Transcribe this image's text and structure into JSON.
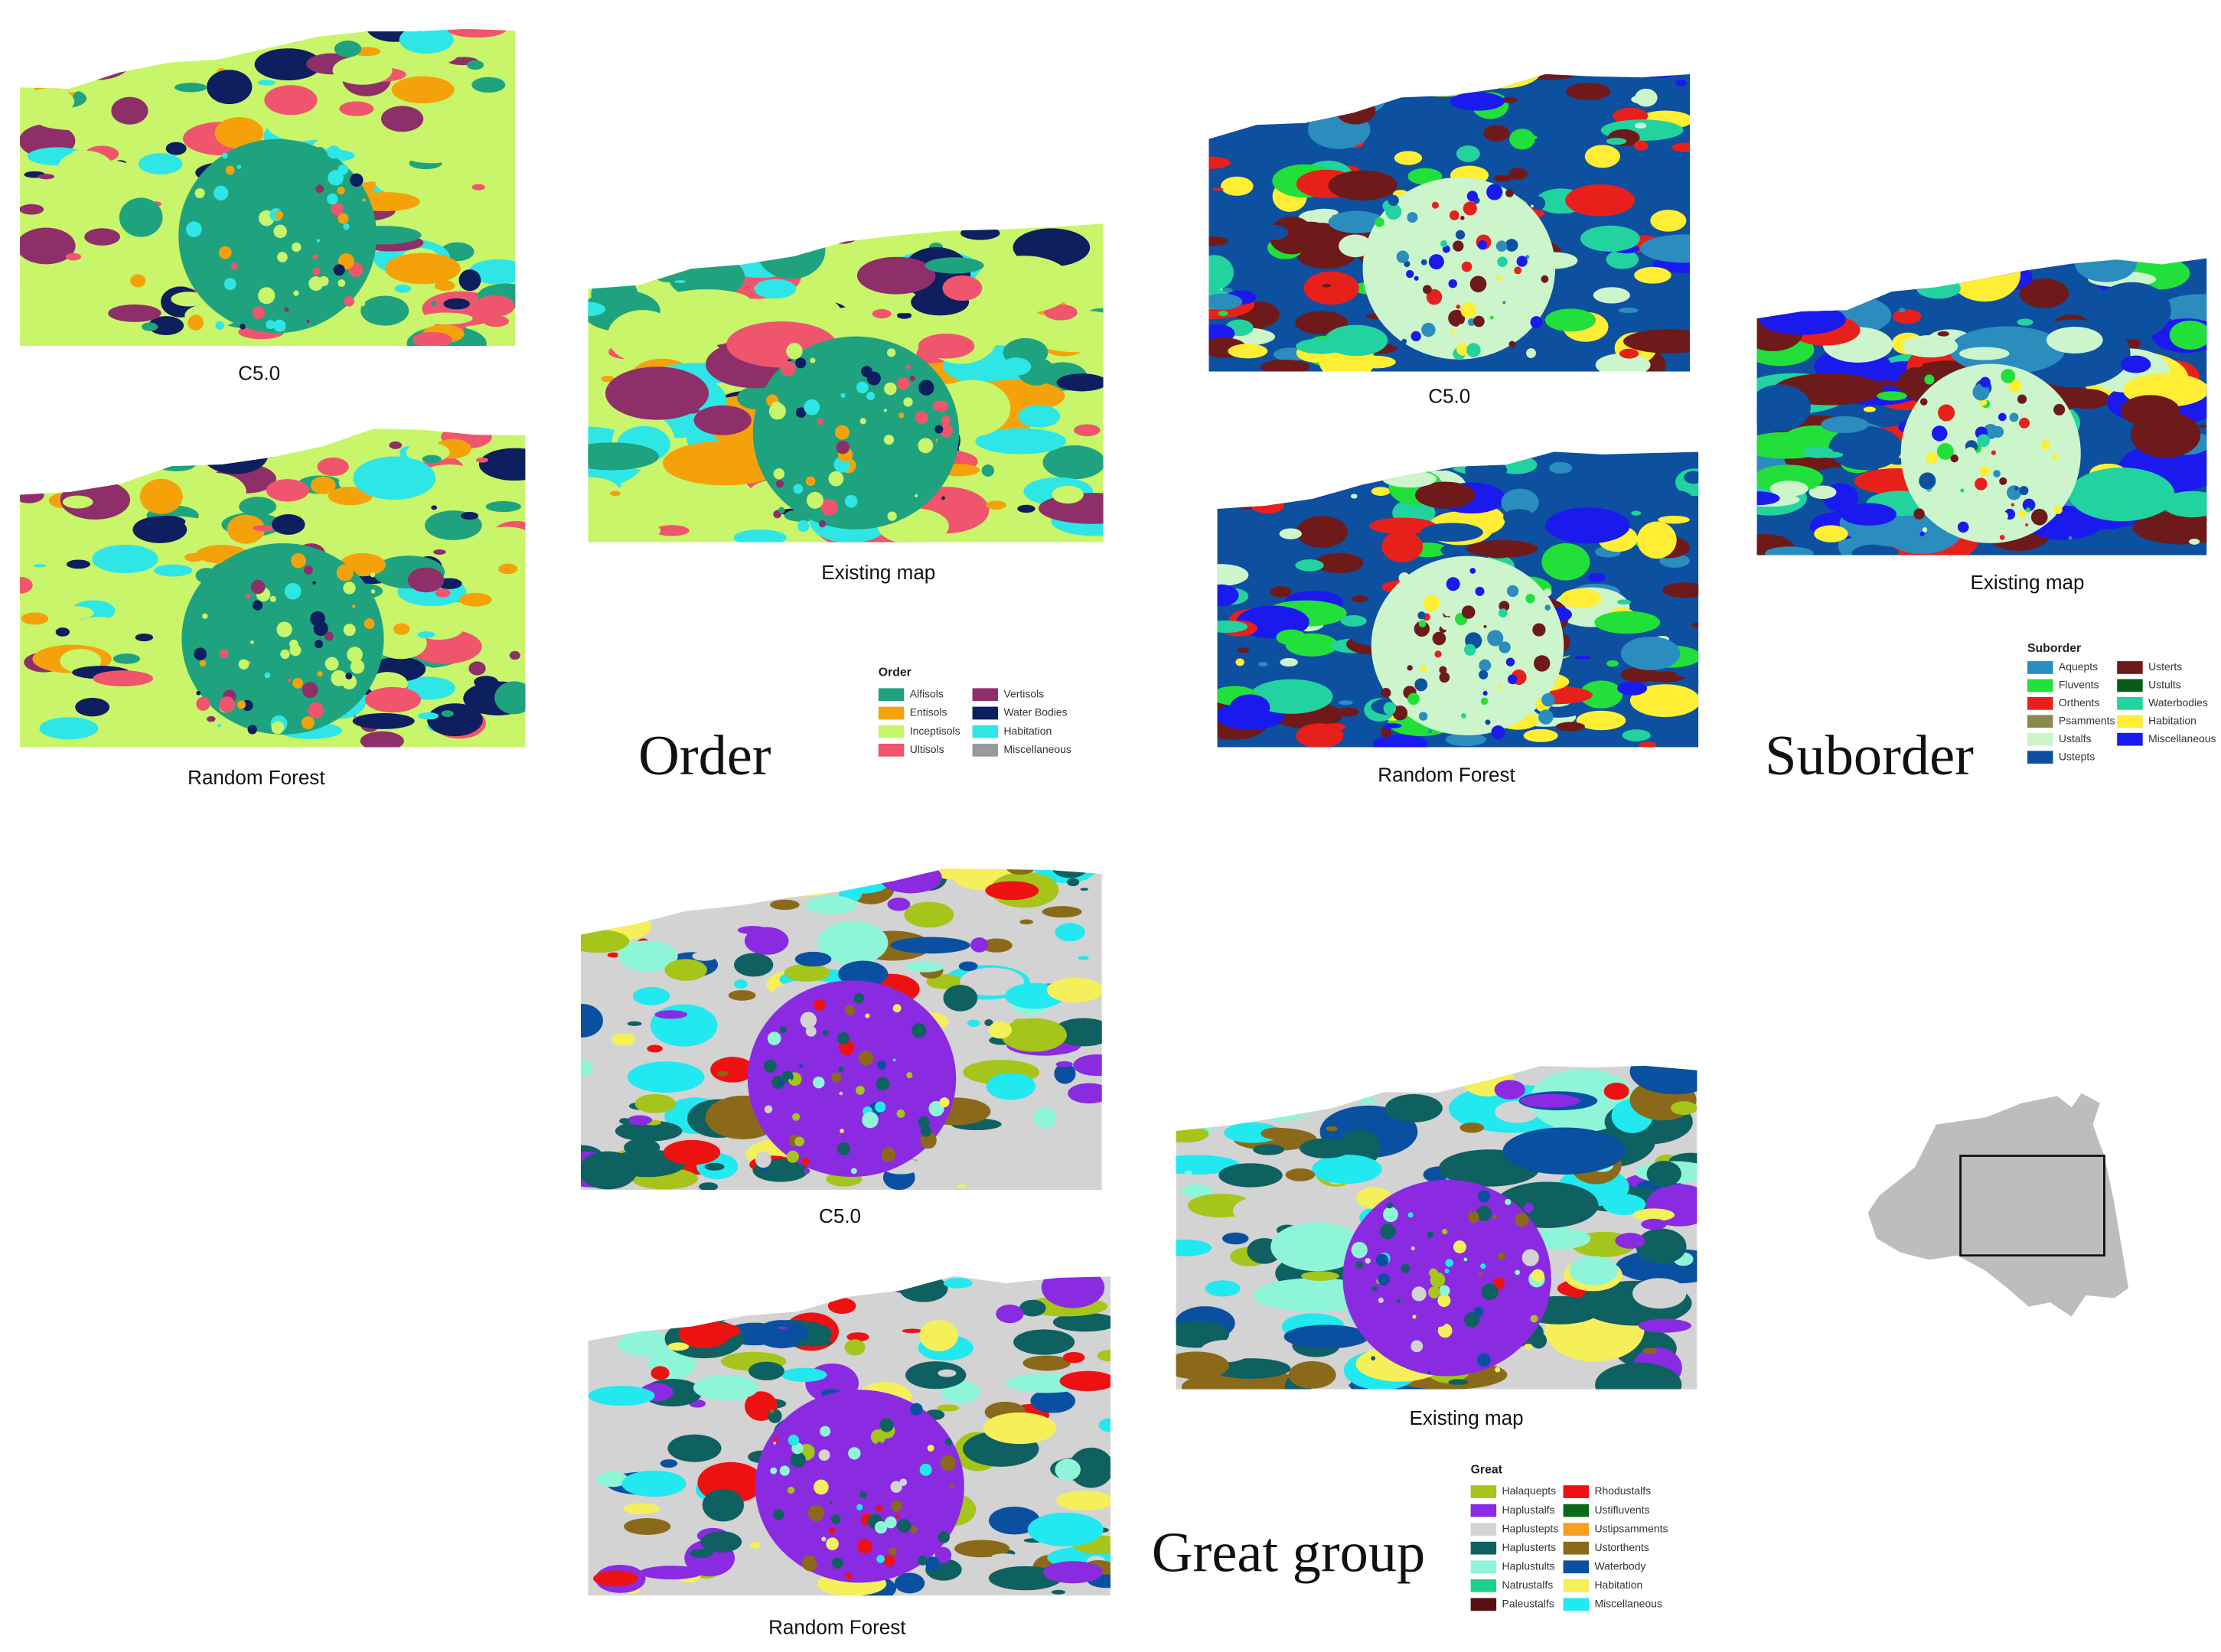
{
  "panels": [
    {
      "title": "Order",
      "maps": [
        {
          "caption": "C5.0"
        },
        {
          "caption": "Random Forest"
        },
        {
          "caption": "Existing map"
        }
      ],
      "legend": {
        "title": "Order",
        "entries": [
          {
            "label": "Alfisols",
            "color": "#1fa37f"
          },
          {
            "label": "Entisols",
            "color": "#f5a20a"
          },
          {
            "label": "Inceptisols",
            "color": "#c8f56a"
          },
          {
            "label": "Ultisols",
            "color": "#f0556e"
          },
          {
            "label": "Vertisols",
            "color": "#8e2f6a"
          },
          {
            "label": "Water Bodies",
            "color": "#0d1f5e"
          },
          {
            "label": "Habitation",
            "color": "#2ee6e6"
          },
          {
            "label": "Miscellaneous",
            "color": "#999999"
          }
        ]
      }
    },
    {
      "title": "Suborder",
      "maps": [
        {
          "caption": "C5.0"
        },
        {
          "caption": "Random Forest"
        },
        {
          "caption": "Existing map"
        }
      ],
      "legend": {
        "title": "Suborder",
        "entries": [
          {
            "label": "Aquepts",
            "color": "#2b8cbe"
          },
          {
            "label": "Fluvents",
            "color": "#22e03a"
          },
          {
            "label": "Orthents",
            "color": "#e8201c"
          },
          {
            "label": "Psamments",
            "color": "#8a8a4a"
          },
          {
            "label": "Ustalfs",
            "color": "#ccf5cc"
          },
          {
            "label": "Ustepts",
            "color": "#0d50a0"
          },
          {
            "label": "Usterts",
            "color": "#6e1a1a"
          },
          {
            "label": "Ustults",
            "color": "#0a5a1a"
          },
          {
            "label": "Waterbodies",
            "color": "#22d3a0"
          },
          {
            "label": "Habitation",
            "color": "#ffee33"
          },
          {
            "label": "Miscellaneous",
            "color": "#1a1aee"
          }
        ]
      }
    },
    {
      "title": "Great group",
      "maps": [
        {
          "caption": "C5.0"
        },
        {
          "caption": "Random Forest"
        },
        {
          "caption": "Existing map"
        }
      ],
      "legend": {
        "title": "Great",
        "entries": [
          {
            "label": "Halaquepts",
            "color": "#a5c51a"
          },
          {
            "label": "Haplustalfs",
            "color": "#8a2be2"
          },
          {
            "label": "Haplustepts",
            "color": "#d3d3d3"
          },
          {
            "label": "Haplusterts",
            "color": "#0f6060"
          },
          {
            "label": "Haplustults",
            "color": "#8ff5d8"
          },
          {
            "label": "Natrustalfs",
            "color": "#1ad38a"
          },
          {
            "label": "Paleustalfs",
            "color": "#5a1010"
          },
          {
            "label": "Rhodustalfs",
            "color": "#ee1111"
          },
          {
            "label": "Ustifluvents",
            "color": "#0a6a1a"
          },
          {
            "label": "Ustipsamments",
            "color": "#f5a020"
          },
          {
            "label": "Ustorthents",
            "color": "#8a6a1a"
          },
          {
            "label": "Waterbody",
            "color": "#0a50a0"
          },
          {
            "label": "Habitation",
            "color": "#f5f05a"
          },
          {
            "label": "Miscellaneous",
            "color": "#22e8f0"
          }
        ]
      }
    }
  ]
}
